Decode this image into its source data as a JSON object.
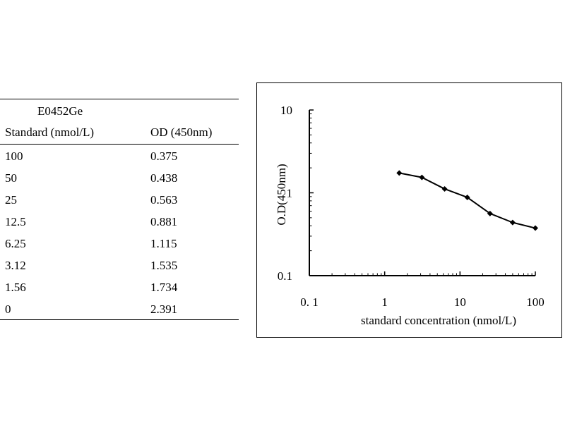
{
  "table": {
    "title": "E0452Ge",
    "headers": [
      "Standard (nmol/L)",
      "OD (450nm)"
    ],
    "rows": [
      [
        "100",
        "0.375"
      ],
      [
        "50",
        "0.438"
      ],
      [
        "25",
        "0.563"
      ],
      [
        "12.5",
        "0.881"
      ],
      [
        "6.25",
        "1.115"
      ],
      [
        "3.12",
        "1.535"
      ],
      [
        "1.56",
        "1.734"
      ],
      [
        "0",
        "2.391"
      ]
    ]
  },
  "chart_data": {
    "type": "line",
    "xlabel": "standard concentration (nmol/L)",
    "ylabel": "O.D(450nm)",
    "x_scale": "log",
    "y_scale": "log",
    "xlim": [
      0.1,
      100
    ],
    "ylim": [
      0.1,
      10
    ],
    "x_ticks": [
      "0. 1",
      "1",
      "10",
      "100"
    ],
    "y_ticks": [
      "0.1",
      "1",
      "10"
    ],
    "grid": false,
    "series": [
      {
        "x": [
          1.56,
          3.12,
          6.25,
          12.5,
          25,
          50,
          100
        ],
        "y": [
          1.734,
          1.535,
          1.115,
          0.881,
          0.563,
          0.438,
          0.375
        ],
        "color": "#000000",
        "marker": "diamond"
      }
    ]
  }
}
